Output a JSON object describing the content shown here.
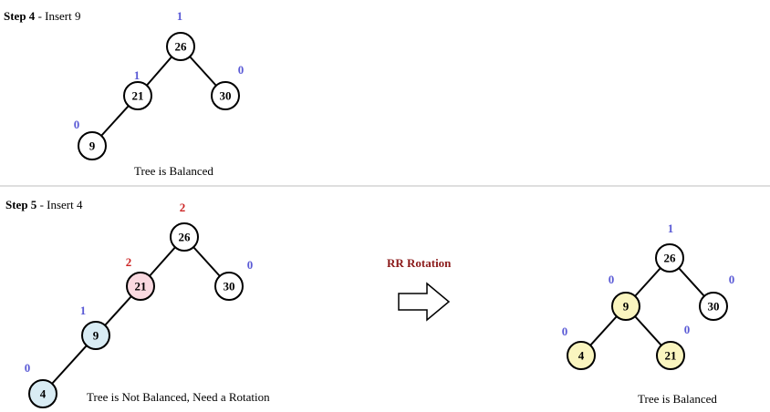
{
  "colors": {
    "node_default": "#ffffff",
    "node_unbalanced": "#f9d9e0",
    "node_path": "#d9ecf4",
    "node_result": "#faf5bf",
    "balance_ok": "#5b5bd6",
    "balance_bad": "#cc2222",
    "rotation_title": "#8b1a1a",
    "divider": "#bdbdbd"
  },
  "step4": {
    "title": "Step 4",
    "subtitle": " - Insert 9",
    "caption": "Tree is Balanced",
    "nodes": [
      {
        "id": "26",
        "label": "26",
        "balance": "1",
        "fill": "node_default",
        "balance_color": "balance_ok"
      },
      {
        "id": "21",
        "label": "21",
        "balance": "1",
        "fill": "node_default",
        "balance_color": "balance_ok"
      },
      {
        "id": "30",
        "label": "30",
        "balance": "0",
        "fill": "node_default",
        "balance_color": "balance_ok"
      },
      {
        "id": "9",
        "label": "9",
        "balance": "0",
        "fill": "node_default",
        "balance_color": "balance_ok"
      }
    ],
    "edges": [
      [
        "26",
        "21"
      ],
      [
        "26",
        "30"
      ],
      [
        "21",
        "9"
      ]
    ]
  },
  "step5": {
    "title": "Step 5",
    "subtitle": " - Insert 4",
    "caption": "Tree is Not Balanced, Need a Rotation",
    "nodes": [
      {
        "id": "26",
        "label": "26",
        "balance": "2",
        "fill": "node_default",
        "balance_color": "balance_bad"
      },
      {
        "id": "21",
        "label": "21",
        "balance": "2",
        "fill": "node_unbalanced",
        "balance_color": "balance_bad"
      },
      {
        "id": "30",
        "label": "30",
        "balance": "0",
        "fill": "node_default",
        "balance_color": "balance_ok"
      },
      {
        "id": "9",
        "label": "9",
        "balance": "1",
        "fill": "node_path",
        "balance_color": "balance_ok"
      },
      {
        "id": "4",
        "label": "4",
        "balance": "0",
        "fill": "node_path",
        "balance_color": "balance_ok"
      }
    ],
    "edges": [
      [
        "26",
        "21"
      ],
      [
        "26",
        "30"
      ],
      [
        "21",
        "9"
      ],
      [
        "9",
        "4"
      ]
    ]
  },
  "rotation": {
    "title": "RR Rotation"
  },
  "result": {
    "caption": "Tree is Balanced",
    "nodes": [
      {
        "id": "26",
        "label": "26",
        "balance": "1",
        "fill": "node_default",
        "balance_color": "balance_ok"
      },
      {
        "id": "9",
        "label": "9",
        "balance": "0",
        "fill": "node_result",
        "balance_color": "balance_ok"
      },
      {
        "id": "30",
        "label": "30",
        "balance": "0",
        "fill": "node_default",
        "balance_color": "balance_ok"
      },
      {
        "id": "4",
        "label": "4",
        "balance": "0",
        "fill": "node_result",
        "balance_color": "balance_ok"
      },
      {
        "id": "21",
        "label": "21",
        "balance": "0",
        "fill": "node_result",
        "balance_color": "balance_ok"
      }
    ],
    "edges": [
      [
        "26",
        "9"
      ],
      [
        "26",
        "30"
      ],
      [
        "9",
        "4"
      ],
      [
        "9",
        "21"
      ]
    ]
  }
}
